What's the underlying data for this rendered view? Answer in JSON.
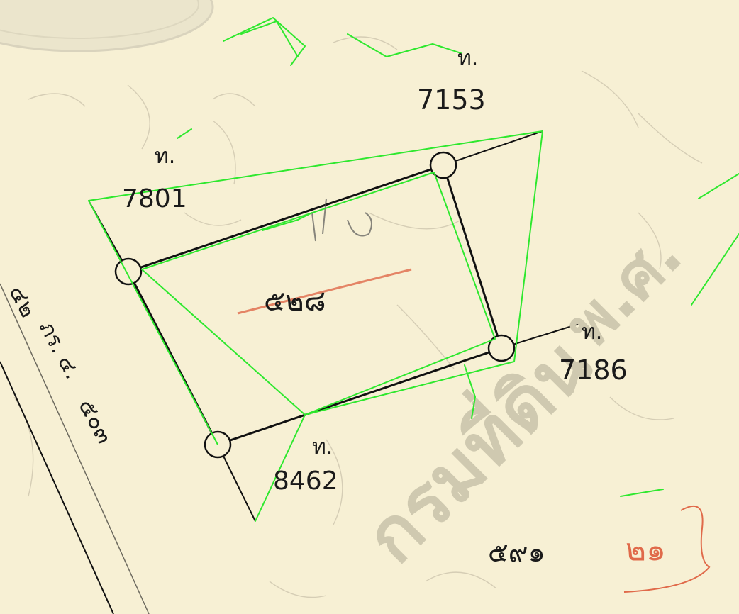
{
  "parcel_numbers": {
    "top": "7153",
    "upper_left": "7801",
    "right": "7186",
    "bottom": "8462"
  },
  "parcel_prefix": "ท.",
  "center_label": "๕๒๘",
  "left_labels": {
    "a": "๔๒",
    "b": "ภร. ๔.",
    "c": "๕๐๓"
  },
  "bottom_label": "๕๙๑",
  "stamp_text": "กรมที่ดิน",
  "stamp_tail": "พ.ศ.",
  "corner_note": "๒๑",
  "colors": {
    "paper": "#f7f0d4",
    "ink": "#111111",
    "annotation": "#2ee82e",
    "red_mark": "#e06a4a",
    "stamp": "#cfc9b0"
  }
}
